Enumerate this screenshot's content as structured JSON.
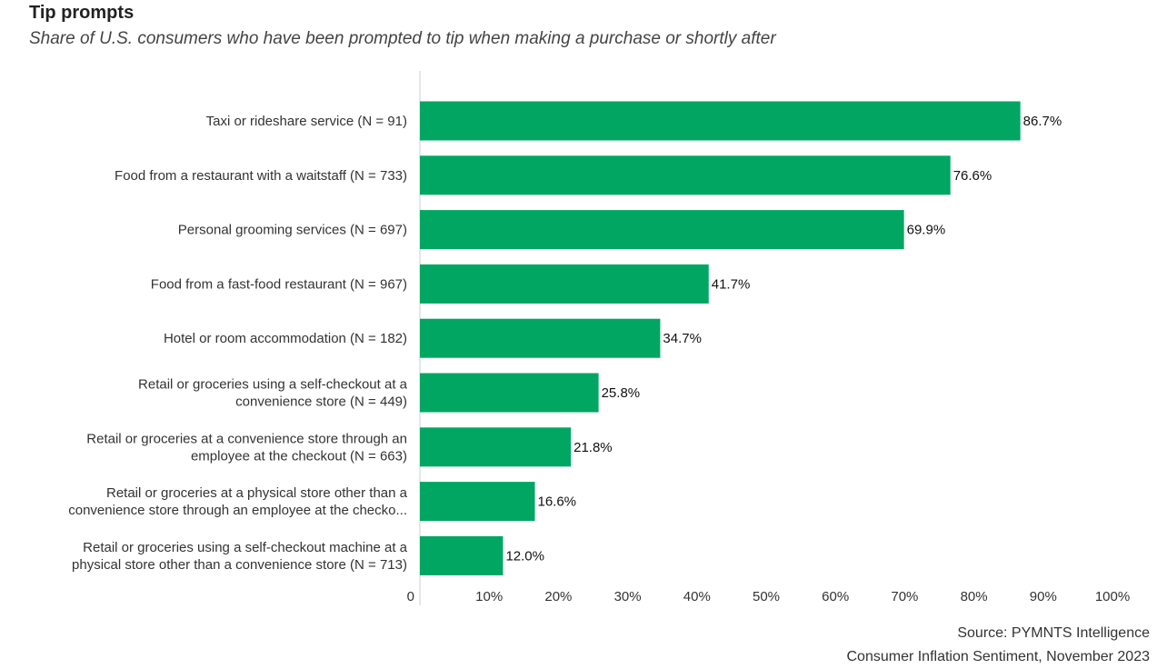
{
  "header": {
    "title": "Tip prompts",
    "subtitle": "Share of U.S. consumers who have been prompted to tip when making a purchase or shortly after"
  },
  "footer": {
    "source_line1": "Source: PYMNTS Intelligence",
    "source_line2": "Consumer Inflation Sentiment, November 2023"
  },
  "colors": {
    "bar": "#00a661",
    "axis": "#cccccc"
  },
  "chart_data": {
    "type": "bar",
    "orientation": "horizontal",
    "categories": [
      [
        "Taxi or rideshare service (N = 91)"
      ],
      [
        "Food from a restaurant with a waitstaff (N = 733)"
      ],
      [
        "Personal grooming services (N = 697)"
      ],
      [
        "Food from a fast-food restaurant (N = 967)"
      ],
      [
        "Hotel or room accommodation (N = 182)"
      ],
      [
        "Retail or groceries using a self-checkout at a",
        "convenience store (N = 449)"
      ],
      [
        "Retail or groceries at a convenience store through an",
        "employee at the checkout (N = 663)"
      ],
      [
        "Retail or groceries at a physical store other than a",
        "convenience store through an employee at the checko..."
      ],
      [
        "Retail or groceries using a self-checkout machine at a",
        "physical store other than a convenience store (N = 713)"
      ]
    ],
    "values": [
      86.7,
      76.6,
      69.9,
      41.7,
      34.7,
      25.8,
      21.8,
      16.6,
      12.0
    ],
    "value_labels": [
      "86.7%",
      "76.6%",
      "69.9%",
      "41.7%",
      "34.7%",
      "25.8%",
      "21.8%",
      "16.6%",
      "12.0%"
    ],
    "xlim": [
      0,
      100
    ],
    "x_ticks": [
      0,
      10,
      20,
      30,
      40,
      50,
      60,
      70,
      80,
      90,
      100
    ],
    "x_tick_labels": [
      "0",
      "10%",
      "20%",
      "30%",
      "40%",
      "50%",
      "60%",
      "70%",
      "80%",
      "90%",
      "100%"
    ],
    "grid": false,
    "legend": "none"
  }
}
